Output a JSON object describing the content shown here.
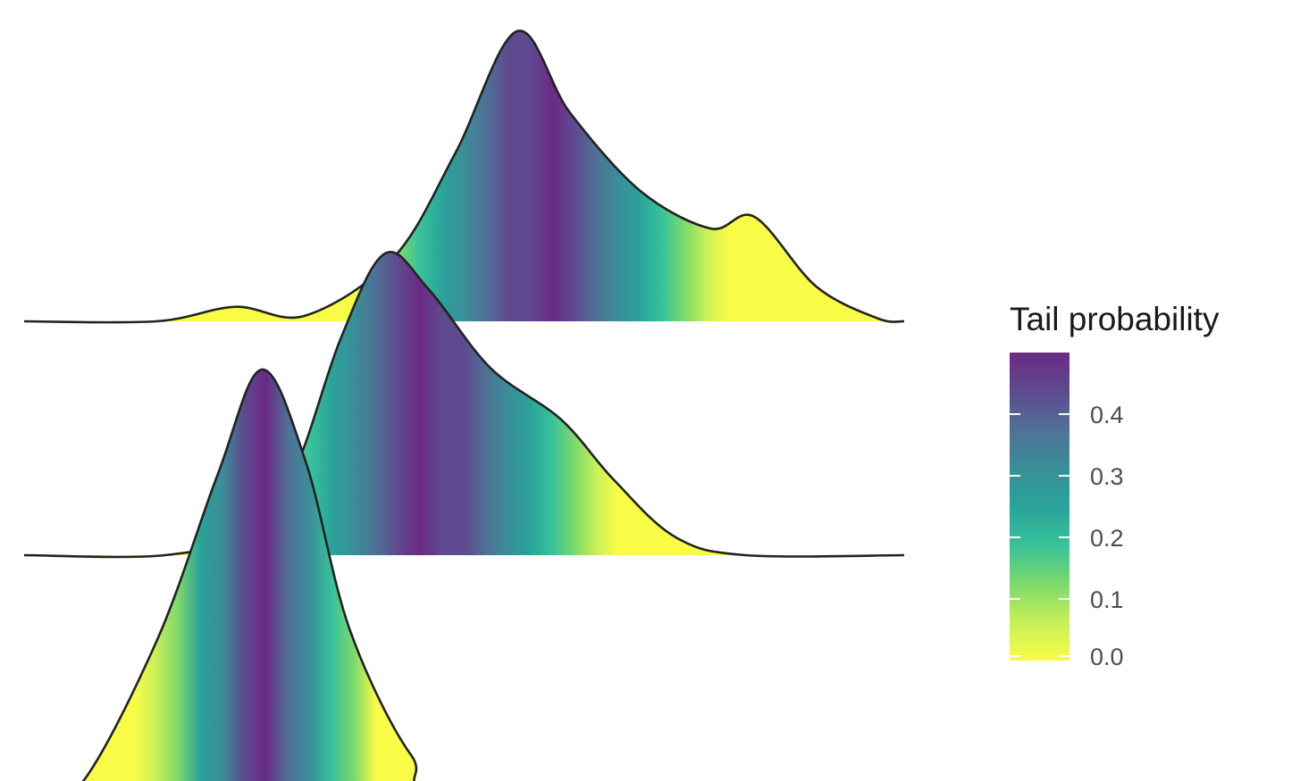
{
  "chart_data": {
    "type": "ridgeline",
    "fill": "tail probability gradient (viridis)",
    "axes_visible": false,
    "grid": false,
    "legend": {
      "title": "Tail probability",
      "position": "right",
      "range": [
        0.0,
        0.5
      ],
      "ticks": [
        "0.0",
        "0.1",
        "0.2",
        "0.3",
        "0.4"
      ],
      "tick_values": [
        0.0,
        0.1,
        0.2,
        0.3,
        0.4
      ],
      "colormap": "viridis (reversed)"
    },
    "series": [
      {
        "rank": 1,
        "median_frac": 0.59,
        "peak_frac": 0.56,
        "density": [
          [
            0.0,
            0.0
          ],
          [
            0.15,
            0.0
          ],
          [
            0.24,
            0.05
          ],
          [
            0.32,
            0.02
          ],
          [
            0.42,
            0.22
          ],
          [
            0.49,
            0.58
          ],
          [
            0.56,
            1.0
          ],
          [
            0.62,
            0.72
          ],
          [
            0.7,
            0.45
          ],
          [
            0.78,
            0.32
          ],
          [
            0.83,
            0.36
          ],
          [
            0.9,
            0.12
          ],
          [
            0.97,
            0.01
          ],
          [
            1.0,
            0.0
          ]
        ]
      },
      {
        "rank": 2,
        "median_frac": 0.46,
        "peak_frac": 0.41,
        "density": [
          [
            0.0,
            0.0
          ],
          [
            0.16,
            0.0
          ],
          [
            0.26,
            0.08
          ],
          [
            0.31,
            0.3
          ],
          [
            0.36,
            0.72
          ],
          [
            0.41,
            1.0
          ],
          [
            0.46,
            0.88
          ],
          [
            0.53,
            0.62
          ],
          [
            0.61,
            0.45
          ],
          [
            0.67,
            0.25
          ],
          [
            0.74,
            0.06
          ],
          [
            0.82,
            0.0
          ],
          [
            1.0,
            0.0
          ]
        ]
      },
      {
        "rank": 3,
        "median_frac": 0.27,
        "peak_frac": 0.27,
        "density": [
          [
            0.0,
            0.0
          ],
          [
            0.06,
            0.0
          ],
          [
            0.15,
            0.35
          ],
          [
            0.22,
            0.75
          ],
          [
            0.27,
            1.0
          ],
          [
            0.32,
            0.78
          ],
          [
            0.37,
            0.38
          ],
          [
            0.44,
            0.08
          ],
          [
            0.5,
            0.0
          ],
          [
            1.0,
            0.0
          ]
        ]
      }
    ]
  }
}
